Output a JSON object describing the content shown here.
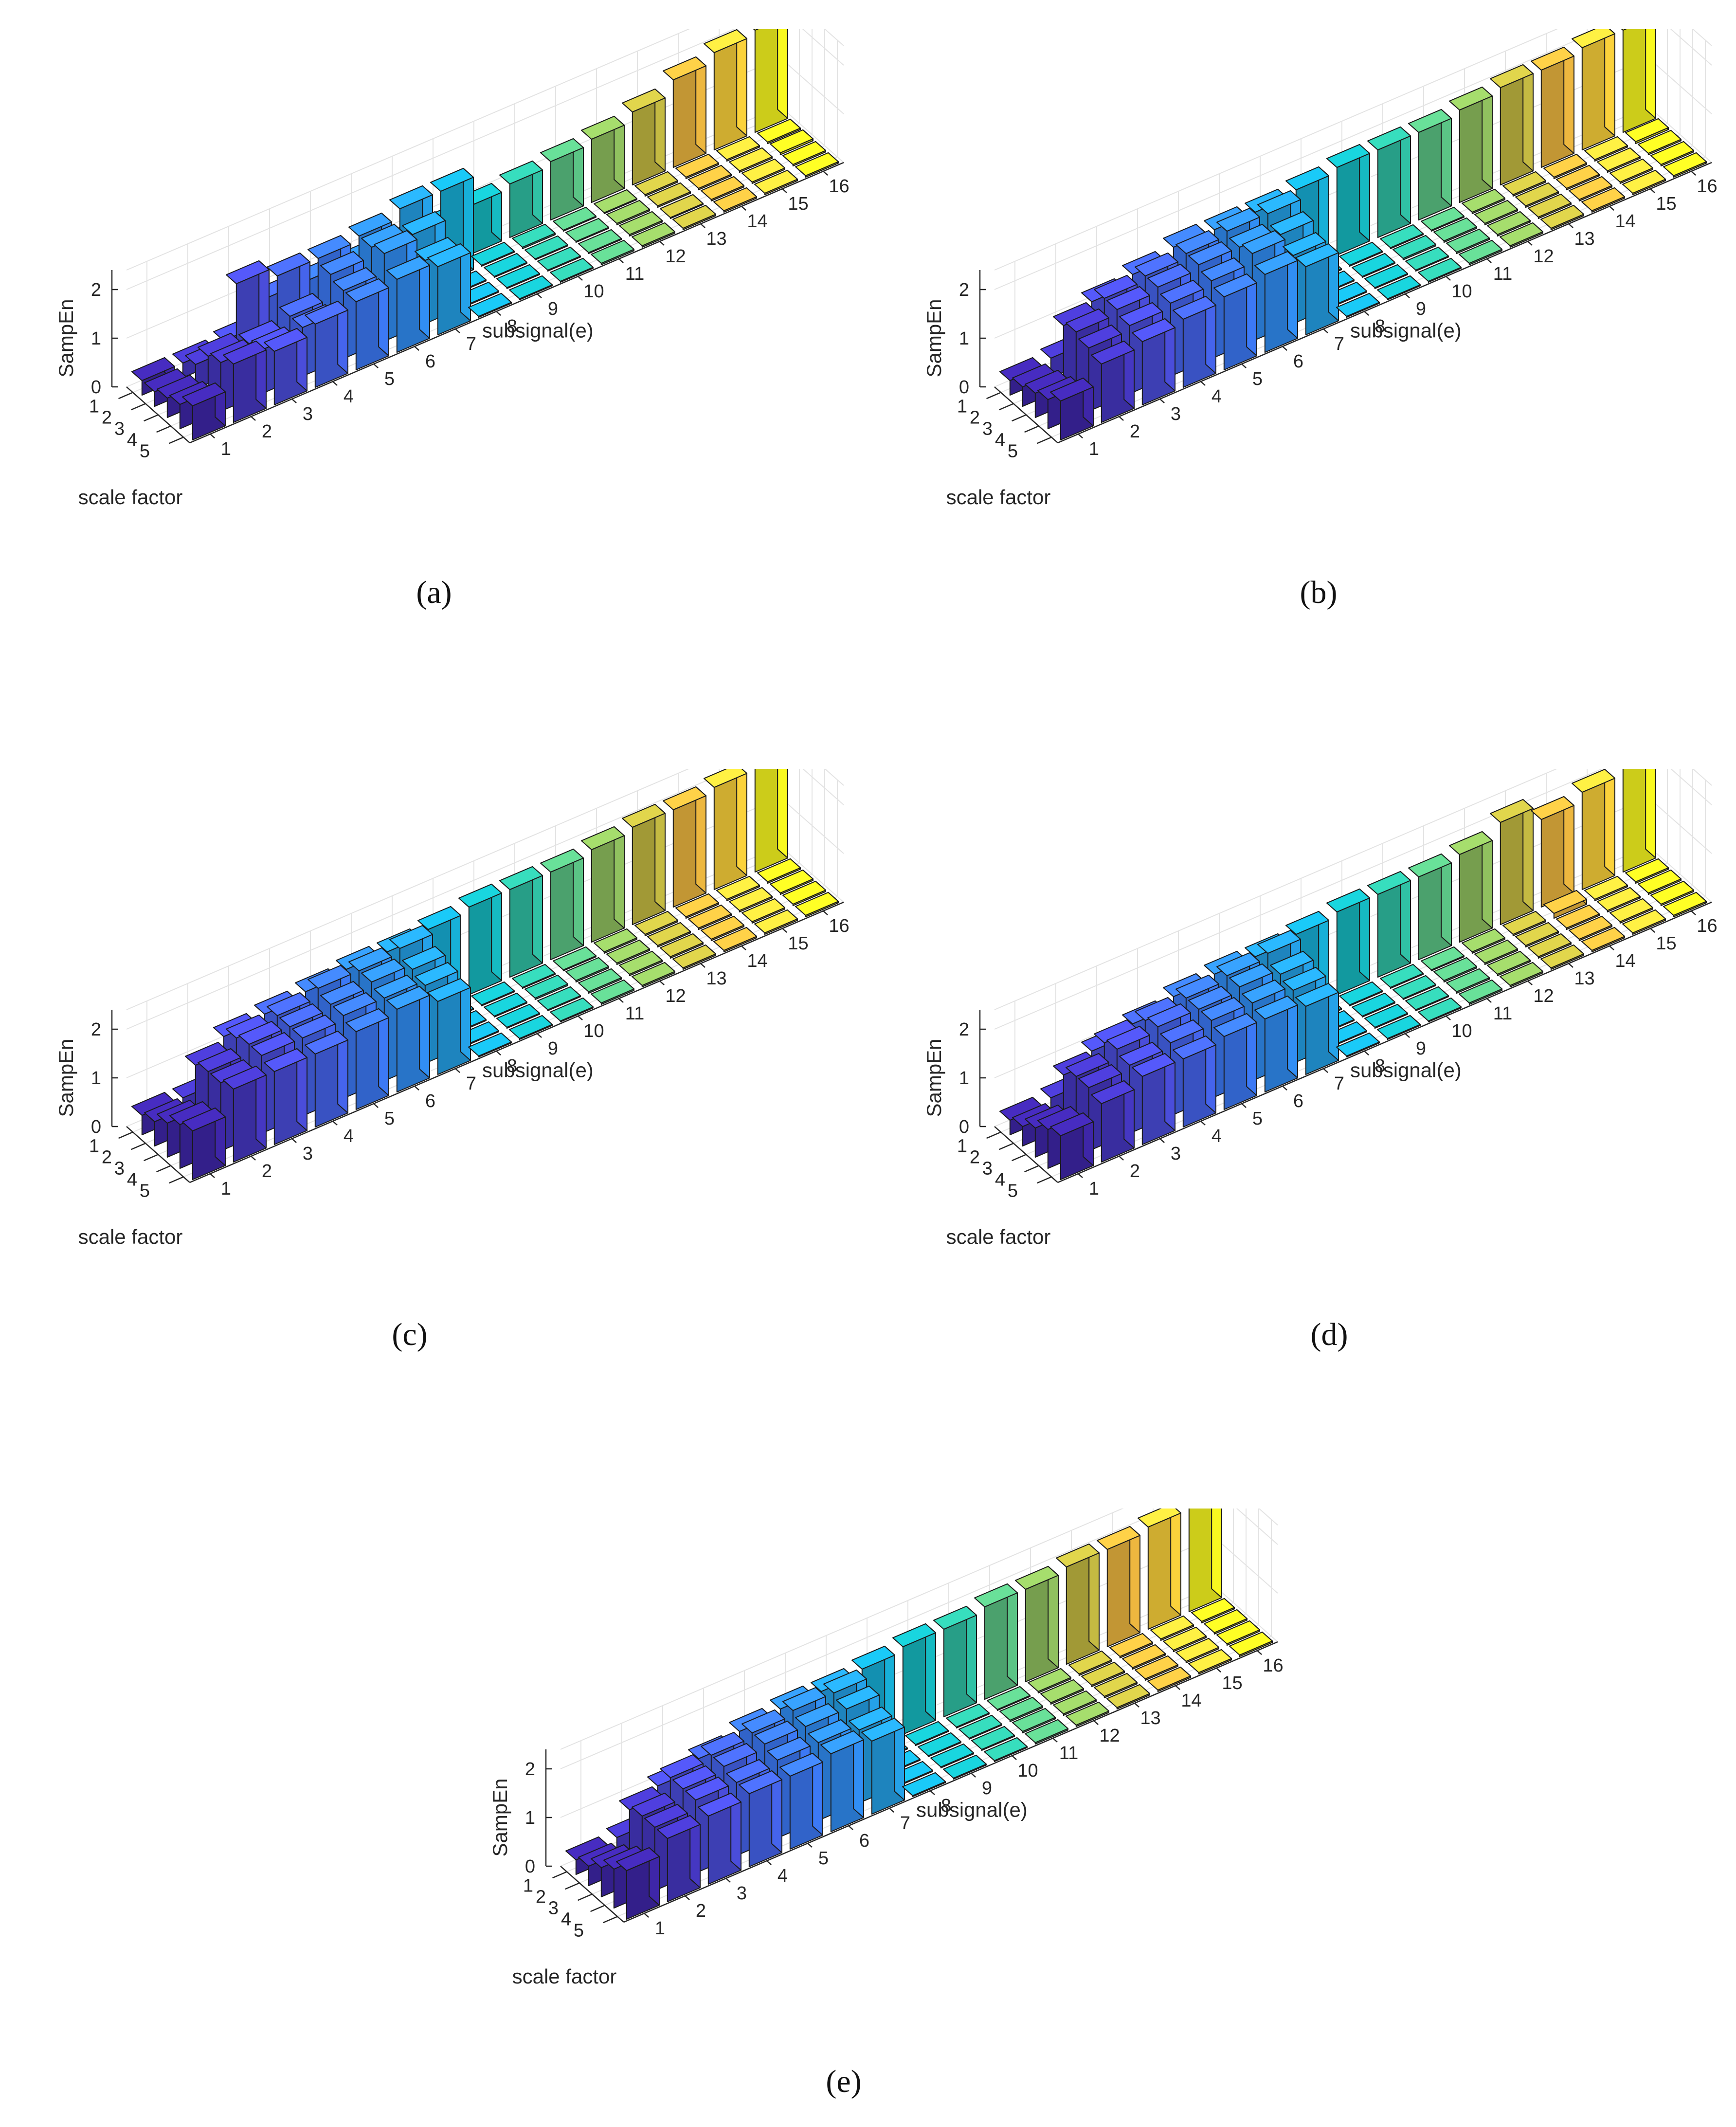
{
  "colors": {
    "colormap": [
      "#3e26a8",
      "#4536c0",
      "#4a4ad8",
      "#4760ea",
      "#3f74f4",
      "#3488f7",
      "#2a9bee",
      "#1eabe0",
      "#0fb6cf",
      "#1cbeb6",
      "#3dc39a",
      "#6ac47a",
      "#9ec055",
      "#cdb93d",
      "#f2b73f",
      "#fcd43b",
      "#f9f920"
    ]
  },
  "captions": [
    "(a)",
    "(b)",
    "(c)",
    "(d)",
    "(e)"
  ],
  "chart_data": [
    {
      "type": "bar3d",
      "panel": "a",
      "zlabel": "SampEn",
      "xlabel": "subsignal(e)",
      "ylabel": "scale factor",
      "x_ticks": [
        "1",
        "2",
        "3",
        "4",
        "5",
        "6",
        "7",
        "8",
        "9",
        "10",
        "11",
        "12",
        "13",
        "14",
        "15",
        "16"
      ],
      "y_ticks": [
        "1",
        "2",
        "3",
        "4",
        "5"
      ],
      "z_ticks": [
        "0",
        "1",
        "2"
      ],
      "zlim": [
        0,
        2.4
      ],
      "values": [
        [
          0.3,
          0.3,
          0.4,
          0.9,
          0.9,
          0.9,
          0.9,
          0.9,
          1.0,
          1.1,
          1.2,
          1.3,
          1.5,
          1.8,
          2.0,
          2.1
        ],
        [
          0.3,
          0.5,
          1.8,
          1.6,
          1.6,
          1.7,
          1.9,
          1.9,
          0.02,
          0.03,
          0.02,
          0.02,
          0.03,
          0.03,
          0.03,
          0.03
        ],
        [
          0.4,
          0.9,
          0.8,
          1.0,
          1.5,
          1.7,
          1.6,
          0.02,
          0.02,
          0.02,
          0.02,
          0.03,
          0.03,
          0.03,
          0.03,
          0.04
        ],
        [
          0.5,
          1.0,
          0.9,
          1.0,
          1.4,
          1.8,
          1.3,
          0.02,
          0.02,
          0.02,
          0.02,
          0.03,
          0.02,
          0.03,
          0.03,
          0.03
        ],
        [
          0.7,
          1.2,
          1.1,
          1.3,
          1.4,
          1.5,
          1.4,
          0.02,
          0.02,
          0.02,
          0.03,
          0.03,
          0.03,
          0.03,
          0.03,
          0.03
        ]
      ]
    },
    {
      "type": "bar3d",
      "panel": "b",
      "zlabel": "SampEn",
      "xlabel": "subsignal(e)",
      "ylabel": "scale factor",
      "x_ticks": [
        "1",
        "2",
        "3",
        "4",
        "5",
        "6",
        "7",
        "8",
        "9",
        "10",
        "11",
        "12",
        "13",
        "14",
        "15",
        "16"
      ],
      "y_ticks": [
        "1",
        "2",
        "3",
        "4",
        "5"
      ],
      "z_ticks": [
        "0",
        "1",
        "2"
      ],
      "zlim": [
        0,
        2.4
      ],
      "values": [
        [
          0.3,
          0.4,
          1.2,
          1.4,
          1.6,
          1.6,
          1.6,
          1.7,
          1.8,
          1.8,
          1.8,
          1.9,
          2.0,
          2.0,
          2.1,
          2.1
        ],
        [
          0.4,
          1.3,
          1.5,
          1.6,
          1.7,
          1.8,
          1.8,
          0.02,
          0.02,
          0.02,
          0.02,
          0.03,
          0.03,
          0.03,
          0.03,
          0.04
        ],
        [
          0.5,
          1.4,
          1.5,
          1.6,
          1.7,
          1.7,
          1.6,
          0.02,
          0.02,
          0.03,
          0.03,
          0.03,
          0.03,
          0.03,
          0.03,
          0.03
        ],
        [
          0.6,
          1.3,
          1.4,
          1.5,
          1.6,
          1.8,
          1.4,
          0.02,
          0.02,
          0.02,
          0.03,
          0.03,
          0.03,
          0.03,
          0.03,
          0.03
        ],
        [
          0.8,
          1.2,
          1.3,
          1.4,
          1.5,
          1.6,
          1.4,
          0.02,
          0.02,
          0.02,
          0.03,
          0.03,
          0.03,
          0.03,
          0.03,
          0.03
        ]
      ]
    },
    {
      "type": "bar3d",
      "panel": "c",
      "zlabel": "SampEn",
      "xlabel": "subsignal(e)",
      "ylabel": "scale factor",
      "x_ticks": [
        "1",
        "2",
        "3",
        "4",
        "5",
        "6",
        "7",
        "8",
        "9",
        "10",
        "11",
        "12",
        "13",
        "14",
        "15",
        "16"
      ],
      "y_ticks": [
        "1",
        "2",
        "3",
        "4",
        "5"
      ],
      "z_ticks": [
        "0",
        "1",
        "2"
      ],
      "zlim": [
        0,
        2.4
      ],
      "values": [
        [
          0.4,
          0.4,
          1.3,
          1.4,
          1.5,
          1.6,
          1.6,
          1.7,
          1.8,
          1.8,
          1.8,
          1.9,
          2.0,
          2.0,
          2.1,
          2.2
        ],
        [
          0.5,
          1.3,
          1.5,
          1.6,
          1.8,
          1.8,
          1.9,
          0.02,
          0.02,
          0.02,
          0.02,
          0.03,
          0.03,
          0.03,
          0.03,
          0.03
        ],
        [
          0.7,
          1.4,
          1.6,
          1.6,
          1.7,
          1.8,
          1.7,
          0.02,
          0.02,
          0.03,
          0.03,
          0.03,
          0.03,
          0.03,
          0.03,
          0.03
        ],
        [
          0.9,
          1.4,
          1.6,
          1.6,
          1.7,
          1.7,
          1.6,
          0.02,
          0.02,
          0.02,
          0.03,
          0.03,
          0.03,
          0.03,
          0.03,
          0.03
        ],
        [
          1.0,
          1.5,
          1.5,
          1.5,
          1.6,
          1.7,
          1.5,
          0.02,
          0.02,
          0.02,
          0.03,
          0.03,
          0.03,
          0.03,
          0.03,
          0.03
        ]
      ]
    },
    {
      "type": "bar3d",
      "panel": "d",
      "zlabel": "SampEn",
      "xlabel": "subsignal(e)",
      "ylabel": "scale factor",
      "x_ticks": [
        "1",
        "2",
        "3",
        "4",
        "5",
        "6",
        "7",
        "8",
        "9",
        "10",
        "11",
        "12",
        "13",
        "14",
        "15",
        "16"
      ],
      "y_ticks": [
        "1",
        "2",
        "3",
        "4",
        "5"
      ],
      "z_ticks": [
        "0",
        "1",
        "2"
      ],
      "zlim": [
        0,
        2.4
      ],
      "values": [
        [
          0.3,
          0.4,
          1.0,
          1.2,
          1.4,
          1.5,
          1.5,
          1.6,
          1.7,
          1.7,
          1.7,
          1.8,
          2.1,
          1.8,
          2.0,
          2.2
        ],
        [
          0.4,
          1.1,
          1.4,
          1.5,
          1.6,
          1.7,
          1.8,
          0.02,
          0.02,
          0.02,
          0.02,
          0.03,
          0.03,
          0.1,
          0.03,
          0.03
        ],
        [
          0.6,
          1.3,
          1.5,
          1.6,
          1.6,
          1.7,
          1.6,
          0.02,
          0.02,
          0.02,
          0.03,
          0.03,
          0.03,
          0.03,
          0.03,
          0.03
        ],
        [
          0.8,
          1.3,
          1.4,
          1.5,
          1.6,
          1.6,
          1.5,
          0.02,
          0.02,
          0.02,
          0.03,
          0.03,
          0.03,
          0.03,
          0.03,
          0.03
        ],
        [
          0.9,
          1.2,
          1.4,
          1.4,
          1.5,
          1.5,
          1.4,
          0.02,
          0.02,
          0.02,
          0.03,
          0.03,
          0.03,
          0.03,
          0.03,
          0.03
        ]
      ]
    },
    {
      "type": "bar3d",
      "panel": "e",
      "zlabel": "SampEn",
      "xlabel": "subsignal(e)",
      "ylabel": "scale factor",
      "x_ticks": [
        "1",
        "2",
        "3",
        "4",
        "5",
        "6",
        "7",
        "8",
        "9",
        "10",
        "11",
        "12",
        "13",
        "14",
        "15",
        "16"
      ],
      "y_ticks": [
        "1",
        "2",
        "3",
        "4",
        "5"
      ],
      "z_ticks": [
        "0",
        "1",
        "2"
      ],
      "zlim": [
        0,
        2.4
      ],
      "values": [
        [
          0.3,
          0.4,
          1.1,
          1.3,
          1.5,
          1.6,
          1.6,
          1.7,
          1.8,
          1.8,
          1.9,
          1.9,
          2.0,
          2.0,
          2.1,
          2.2
        ],
        [
          0.4,
          1.2,
          1.5,
          1.6,
          1.7,
          1.8,
          1.8,
          0.02,
          0.02,
          0.02,
          0.02,
          0.03,
          0.03,
          0.03,
          0.03,
          0.03
        ],
        [
          0.6,
          1.3,
          1.5,
          1.6,
          1.7,
          1.7,
          1.7,
          0.02,
          0.02,
          0.02,
          0.03,
          0.03,
          0.03,
          0.03,
          0.03,
          0.03
        ],
        [
          0.8,
          1.3,
          1.5,
          1.5,
          1.6,
          1.6,
          1.5,
          0.02,
          0.02,
          0.02,
          0.03,
          0.03,
          0.03,
          0.03,
          0.03,
          0.03
        ],
        [
          1.0,
          1.3,
          1.4,
          1.5,
          1.5,
          1.6,
          1.5,
          0.02,
          0.02,
          0.02,
          0.03,
          0.03,
          0.03,
          0.03,
          0.03,
          0.03
        ]
      ]
    }
  ]
}
